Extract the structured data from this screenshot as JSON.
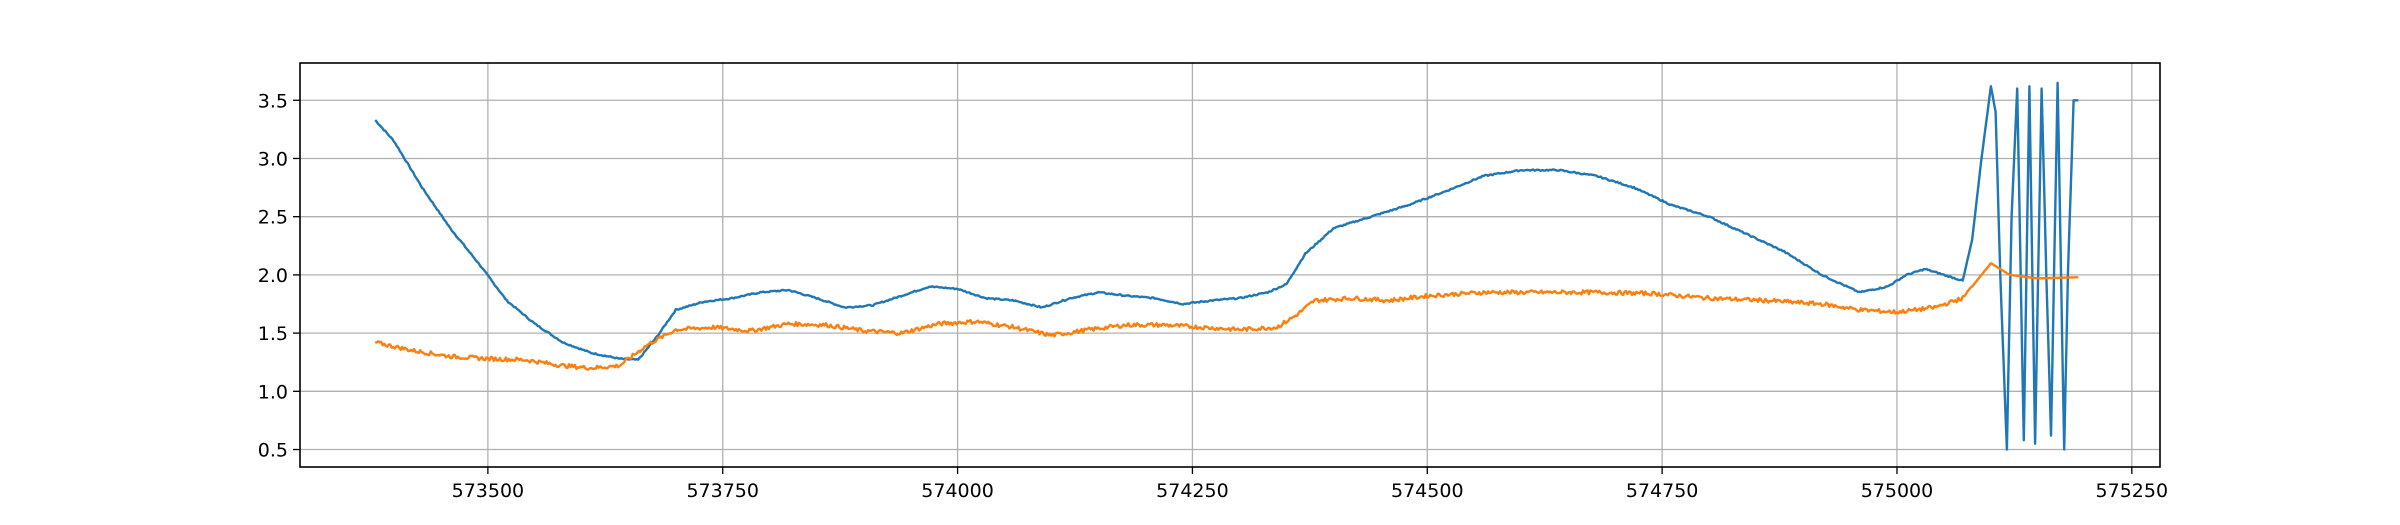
{
  "chart_data": {
    "type": "line",
    "title": "",
    "xlabel": "",
    "ylabel": "",
    "xlim": [
      573300,
      575280
    ],
    "ylim": [
      0.35,
      3.82
    ],
    "xticks": [
      573500,
      573750,
      574000,
      574250,
      574500,
      574750,
      575000,
      575250
    ],
    "xtick_labels": [
      "573500",
      "573750",
      "574000",
      "574250",
      "574500",
      "574750",
      "575000",
      "575250"
    ],
    "yticks": [
      0.5,
      1.0,
      1.5,
      2.0,
      2.5,
      3.0,
      3.5
    ],
    "ytick_labels": [
      "0.5",
      "1.0",
      "1.5",
      "2.0",
      "2.5",
      "3.0",
      "3.5"
    ],
    "grid": true,
    "legend": "none",
    "series": [
      {
        "color": "#1f77b4",
        "x": [
          573380,
          573400,
          573430,
          573460,
          573490,
          573520,
          573550,
          573580,
          573610,
          573640,
          573660,
          573680,
          573700,
          573730,
          573760,
          573790,
          573820,
          573850,
          573880,
          573910,
          573940,
          573970,
          574000,
          574030,
          574060,
          574090,
          574120,
          574150,
          574180,
          574210,
          574240,
          574270,
          574300,
          574330,
          574350,
          574370,
          574400,
          574440,
          574480,
          574520,
          574560,
          574600,
          574640,
          574680,
          574720,
          574760,
          574800,
          574840,
          574880,
          574920,
          574960,
          574990,
          575010,
          575030,
          575050,
          575070,
          575080,
          575090,
          575100,
          575105,
          575110,
          575117,
          575122,
          575128,
          575135,
          575141,
          575147,
          575154,
          575159,
          575164,
          575171,
          575178,
          575182,
          575188,
          575193
        ],
        "y": [
          3.33,
          3.15,
          2.75,
          2.4,
          2.1,
          1.78,
          1.58,
          1.42,
          1.33,
          1.28,
          1.27,
          1.47,
          1.7,
          1.77,
          1.8,
          1.85,
          1.87,
          1.8,
          1.72,
          1.74,
          1.82,
          1.9,
          1.88,
          1.8,
          1.78,
          1.72,
          1.8,
          1.85,
          1.82,
          1.8,
          1.75,
          1.78,
          1.8,
          1.85,
          1.92,
          2.18,
          2.4,
          2.5,
          2.6,
          2.72,
          2.85,
          2.9,
          2.9,
          2.85,
          2.75,
          2.6,
          2.5,
          2.35,
          2.2,
          2.0,
          1.85,
          1.9,
          2.0,
          2.05,
          2.0,
          1.95,
          2.3,
          3.0,
          3.62,
          3.4,
          2.0,
          0.5,
          2.5,
          3.6,
          0.58,
          3.62,
          0.55,
          3.6,
          2.0,
          0.62,
          3.65,
          0.5,
          2.0,
          3.5,
          3.5
        ]
      },
      {
        "color": "#ff7f0e",
        "x": [
          573380,
          573420,
          573460,
          573500,
          573540,
          573580,
          573610,
          573640,
          573670,
          573700,
          573740,
          573780,
          573820,
          573860,
          573900,
          573940,
          573980,
          574020,
          574060,
          574100,
          574140,
          574180,
          574220,
          574260,
          574300,
          574340,
          574360,
          574380,
          574420,
          574460,
          574500,
          574560,
          574620,
          574680,
          574740,
          574800,
          574860,
          574920,
          574960,
          575000,
          575040,
          575070,
          575085,
          575100,
          575120,
          575150,
          575193
        ],
        "y": [
          1.42,
          1.35,
          1.3,
          1.28,
          1.27,
          1.22,
          1.2,
          1.22,
          1.4,
          1.53,
          1.55,
          1.52,
          1.58,
          1.57,
          1.52,
          1.5,
          1.58,
          1.6,
          1.55,
          1.48,
          1.53,
          1.57,
          1.57,
          1.55,
          1.53,
          1.55,
          1.65,
          1.78,
          1.8,
          1.78,
          1.82,
          1.85,
          1.85,
          1.85,
          1.84,
          1.8,
          1.78,
          1.75,
          1.7,
          1.68,
          1.72,
          1.8,
          1.95,
          2.1,
          2.0,
          1.97,
          1.98
        ]
      }
    ]
  }
}
